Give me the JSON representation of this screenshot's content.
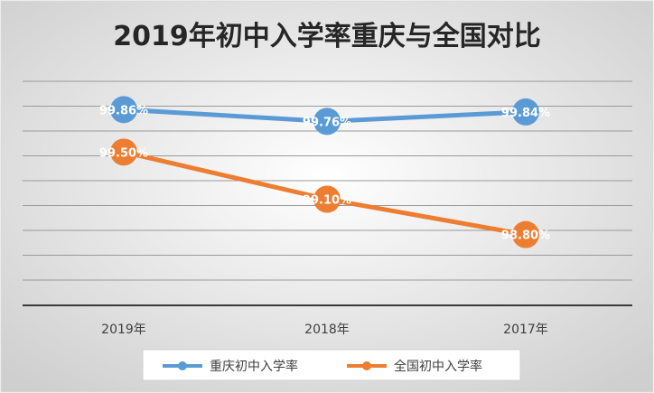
{
  "chart_data": {
    "type": "line",
    "title": "2019年初中入学率重庆与全国对比",
    "xlabel": "",
    "ylabel": "",
    "categories": [
      "2019年",
      "2018年",
      "2017年"
    ],
    "series": [
      {
        "name": "重庆初中入学率",
        "values": [
          99.86,
          99.76,
          99.84
        ],
        "labels": [
          "99.86%",
          "99.76%",
          "99.84%"
        ],
        "color": "#5B9BD5"
      },
      {
        "name": "全国初中入学率",
        "values": [
          99.5,
          99.1,
          98.8
        ],
        "labels": [
          "99.50%",
          "99.10%",
          "98.80%"
        ],
        "color": "#ED7D31"
      }
    ],
    "ylim": [
      98.2,
      100.1
    ],
    "grid": true,
    "y_tick_labels_shown": false,
    "legend_position": "bottom"
  },
  "colors": {
    "gridline": "#9a9a9a",
    "axis": "#3a3a3a",
    "background_center": "#ffffff",
    "background_edge": "#cfcfcf"
  }
}
